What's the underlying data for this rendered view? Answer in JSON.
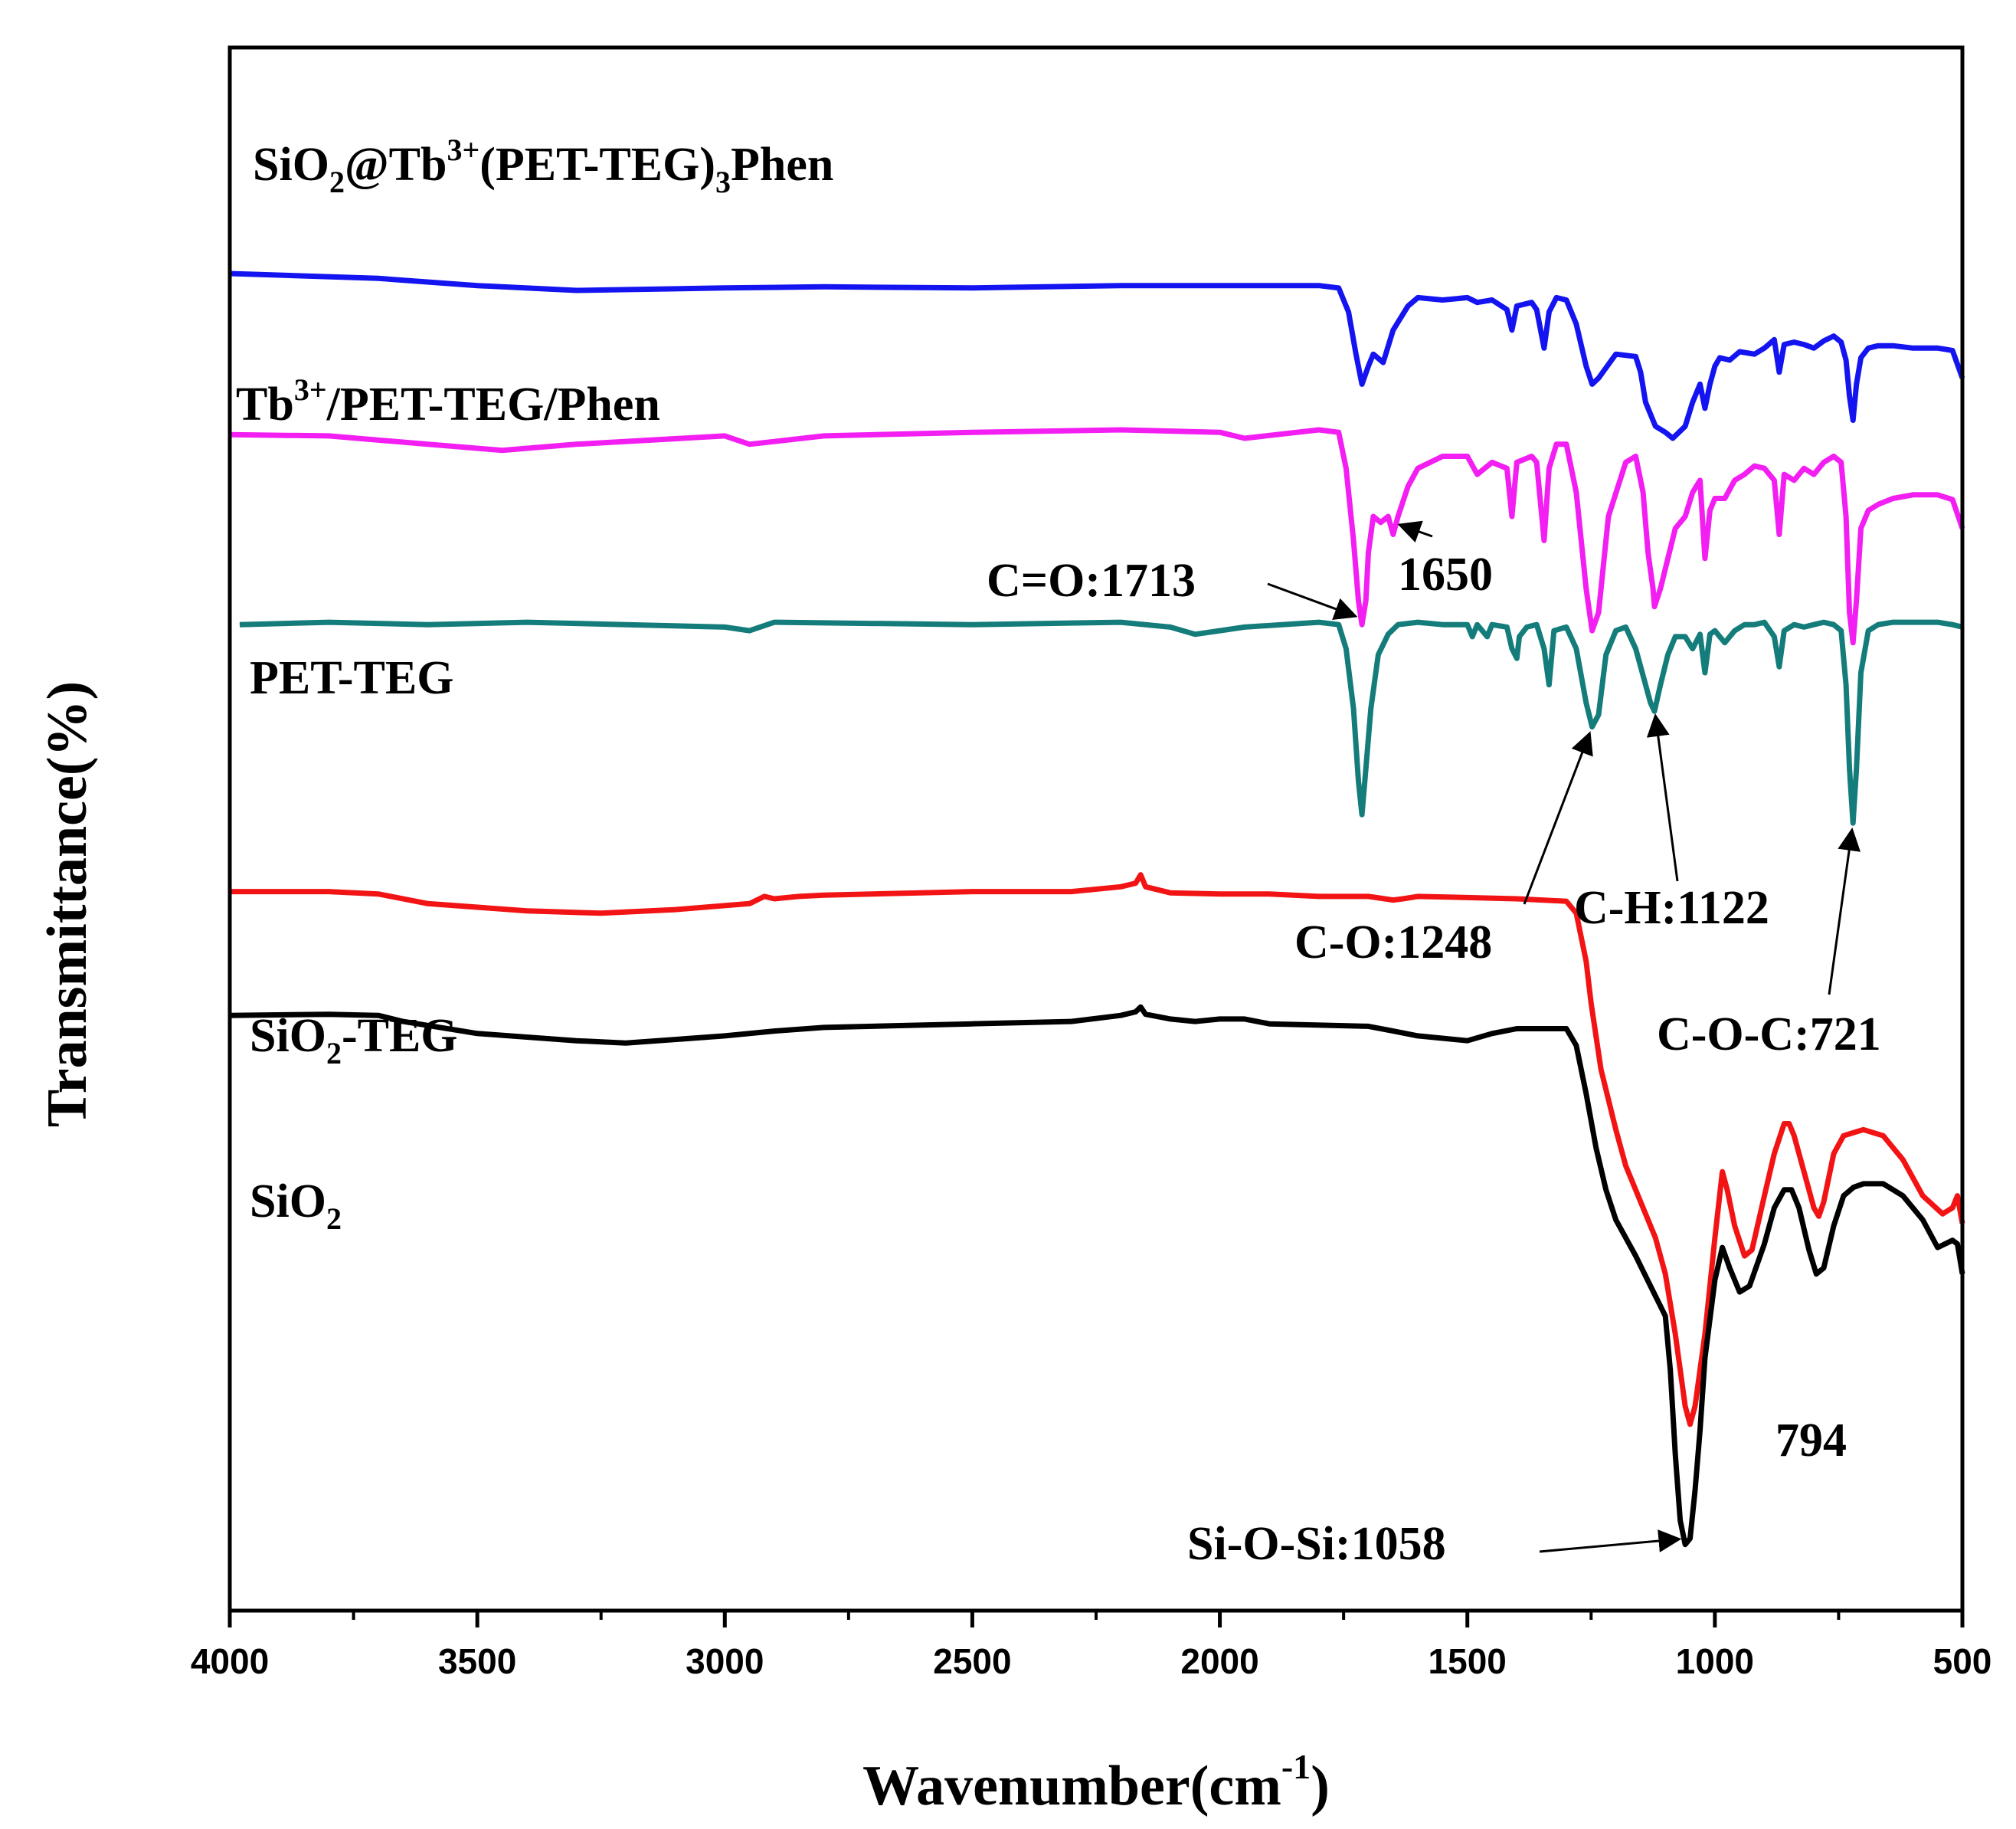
{
  "chart_data": {
    "type": "line",
    "title": "",
    "xlabel": "Wavenumber(cm",
    "xlabel_sup": "-1",
    "xlabel_end": ")",
    "ylabel": "Transmittance(%)",
    "xlim": [
      4000,
      500
    ],
    "x_reversed": true,
    "y_ticks_shown": false,
    "x_ticks": [
      "4000",
      "3500",
      "3000",
      "2500",
      "2000",
      "1500",
      "1000",
      "500"
    ],
    "x_tick_values": [
      4000,
      3500,
      3000,
      2500,
      2000,
      1500,
      1000,
      500
    ],
    "ylim": [
      -0.5,
      12.5
    ],
    "series": [
      {
        "name": "SiO2@Tb3+(PET-TEG)3Phen",
        "label_parts": [
          "SiO",
          "2",
          "@Tb",
          "3+",
          "(PET-TEG)",
          "3",
          "Phen"
        ],
        "color": "#1414f0",
        "x": [
          4000,
          3700,
          3500,
          3300,
          3000,
          2800,
          2500,
          2200,
          2000,
          1800,
          1760,
          1740,
          1725,
          1713,
          1700,
          1690,
          1670,
          1650,
          1620,
          1600,
          1550,
          1500,
          1480,
          1450,
          1420,
          1410,
          1400,
          1370,
          1360,
          1345,
          1335,
          1320,
          1300,
          1280,
          1260,
          1248,
          1235,
          1200,
          1160,
          1150,
          1140,
          1130,
          1120,
          1100,
          1085,
          1060,
          1045,
          1030,
          1020,
          1010,
          1000,
          990,
          970,
          950,
          920,
          900,
          880,
          870,
          860,
          840,
          820,
          800,
          780,
          760,
          745,
          735,
          728,
          721,
          714,
          705,
          690,
          670,
          640,
          600,
          550,
          520,
          500
        ],
        "y": [
          10.62,
          10.58,
          10.52,
          10.48,
          10.5,
          10.51,
          10.5,
          10.52,
          10.52,
          10.52,
          10.5,
          10.3,
          9.95,
          9.7,
          9.85,
          9.95,
          9.88,
          10.15,
          10.35,
          10.42,
          10.4,
          10.42,
          10.38,
          10.4,
          10.32,
          10.15,
          10.35,
          10.38,
          10.32,
          10.0,
          10.3,
          10.42,
          10.4,
          10.2,
          9.85,
          9.7,
          9.75,
          9.95,
          9.93,
          9.8,
          9.55,
          9.45,
          9.35,
          9.3,
          9.25,
          9.35,
          9.55,
          9.7,
          9.5,
          9.7,
          9.85,
          9.92,
          9.9,
          9.97,
          9.95,
          10.0,
          10.07,
          9.8,
          10.03,
          10.05,
          10.03,
          10.0,
          10.06,
          10.1,
          10.05,
          9.9,
          9.6,
          9.4,
          9.7,
          9.92,
          10.0,
          10.02,
          10.02,
          10.0,
          10.0,
          9.98,
          9.75
        ]
      },
      {
        "name": "Tb3+/PET-TEG/Phen",
        "label_parts": [
          "Tb",
          "3+",
          "/PET-TEG/Phen"
        ],
        "color": "#f21ef2",
        "x": [
          4000,
          3800,
          3600,
          3450,
          3300,
          3000,
          2950,
          2800,
          2500,
          2200,
          2000,
          1950,
          1800,
          1760,
          1745,
          1730,
          1720,
          1713,
          1705,
          1700,
          1690,
          1675,
          1660,
          1650,
          1640,
          1620,
          1600,
          1550,
          1500,
          1480,
          1450,
          1420,
          1410,
          1400,
          1370,
          1360,
          1345,
          1335,
          1320,
          1300,
          1280,
          1260,
          1248,
          1235,
          1215,
          1180,
          1160,
          1145,
          1135,
          1125,
          1122,
          1110,
          1095,
          1080,
          1060,
          1045,
          1030,
          1020,
          1010,
          1000,
          980,
          960,
          940,
          920,
          900,
          880,
          870,
          860,
          840,
          820,
          800,
          780,
          760,
          745,
          735,
          728,
          721,
          714,
          705,
          690,
          670,
          640,
          600,
          550,
          520,
          500
        ],
        "y": [
          9.28,
          9.27,
          9.2,
          9.15,
          9.2,
          9.27,
          9.2,
          9.27,
          9.3,
          9.32,
          9.3,
          9.25,
          9.32,
          9.3,
          9.0,
          8.4,
          7.9,
          7.7,
          7.9,
          8.3,
          8.6,
          8.55,
          8.6,
          8.45,
          8.6,
          8.85,
          9.0,
          9.1,
          9.1,
          8.95,
          9.05,
          9.0,
          8.6,
          9.05,
          9.1,
          9.05,
          8.4,
          9.0,
          9.2,
          9.2,
          8.8,
          8.0,
          7.65,
          7.8,
          8.6,
          9.05,
          9.1,
          8.8,
          8.3,
          8.0,
          7.85,
          8.0,
          8.25,
          8.5,
          8.6,
          8.8,
          8.9,
          8.25,
          8.65,
          8.75,
          8.75,
          8.9,
          8.95,
          9.02,
          9.0,
          8.9,
          8.45,
          8.95,
          8.9,
          9.0,
          8.95,
          9.05,
          9.1,
          9.05,
          8.6,
          7.8,
          7.55,
          7.9,
          8.5,
          8.65,
          8.7,
          8.75,
          8.78,
          8.78,
          8.74,
          8.5
        ]
      },
      {
        "name": "PET-TEG",
        "label_parts": [
          "PET-TEG"
        ],
        "color": "#147c7a",
        "x": [
          3980,
          3800,
          3600,
          3400,
          3200,
          3000,
          2950,
          2900,
          2500,
          2200,
          2100,
          2050,
          2000,
          1950,
          1800,
          1760,
          1745,
          1730,
          1720,
          1713,
          1705,
          1695,
          1680,
          1660,
          1640,
          1600,
          1550,
          1500,
          1490,
          1480,
          1460,
          1450,
          1420,
          1410,
          1400,
          1395,
          1380,
          1360,
          1345,
          1335,
          1325,
          1300,
          1280,
          1260,
          1248,
          1235,
          1220,
          1200,
          1180,
          1160,
          1140,
          1130,
          1122,
          1110,
          1095,
          1080,
          1060,
          1045,
          1030,
          1020,
          1010,
          1000,
          980,
          960,
          940,
          920,
          900,
          880,
          870,
          860,
          840,
          820,
          800,
          780,
          760,
          745,
          735,
          728,
          721,
          714,
          705,
          690,
          670,
          640,
          600,
          550,
          520,
          500
        ],
        "y": [
          7.7,
          7.72,
          7.7,
          7.72,
          7.7,
          7.68,
          7.65,
          7.72,
          7.7,
          7.72,
          7.68,
          7.62,
          7.65,
          7.68,
          7.72,
          7.7,
          7.5,
          7.0,
          6.4,
          6.12,
          6.5,
          7.0,
          7.45,
          7.62,
          7.7,
          7.72,
          7.7,
          7.7,
          7.6,
          7.7,
          7.6,
          7.7,
          7.68,
          7.5,
          7.42,
          7.6,
          7.68,
          7.7,
          7.5,
          7.2,
          7.65,
          7.68,
          7.5,
          7.05,
          6.85,
          6.95,
          7.45,
          7.65,
          7.68,
          7.5,
          7.2,
          7.05,
          6.98,
          7.2,
          7.45,
          7.6,
          7.6,
          7.5,
          7.62,
          7.3,
          7.62,
          7.65,
          7.55,
          7.65,
          7.7,
          7.7,
          7.72,
          7.6,
          7.35,
          7.65,
          7.7,
          7.68,
          7.7,
          7.72,
          7.7,
          7.65,
          7.2,
          6.5,
          6.05,
          6.5,
          7.3,
          7.65,
          7.7,
          7.72,
          7.72,
          7.72,
          7.7,
          7.68
        ]
      },
      {
        "name": "SiO2-TEG",
        "label_parts": [
          "SiO",
          "2",
          "-TEG"
        ],
        "color": "#f21414",
        "x": [
          4000,
          3800,
          3700,
          3600,
          3400,
          3250,
          3100,
          2950,
          2920,
          2900,
          2850,
          2800,
          2500,
          2300,
          2200,
          2170,
          2160,
          2150,
          2100,
          2000,
          1900,
          1800,
          1700,
          1650,
          1630,
          1600,
          1500,
          1400,
          1300,
          1280,
          1260,
          1250,
          1230,
          1200,
          1180,
          1150,
          1120,
          1100,
          1080,
          1060,
          1050,
          1040,
          1020,
          1000,
          985,
          975,
          960,
          940,
          925,
          900,
          880,
          860,
          850,
          840,
          820,
          800,
          790,
          780,
          760,
          740,
          700,
          660,
          620,
          580,
          540,
          520,
          510,
          500
        ],
        "y": [
          5.48,
          5.48,
          5.46,
          5.38,
          5.32,
          5.3,
          5.33,
          5.38,
          5.44,
          5.42,
          5.44,
          5.45,
          5.48,
          5.48,
          5.52,
          5.55,
          5.62,
          5.52,
          5.47,
          5.46,
          5.46,
          5.44,
          5.44,
          5.41,
          5.42,
          5.44,
          5.43,
          5.42,
          5.4,
          5.3,
          4.9,
          4.55,
          4.0,
          3.5,
          3.2,
          2.9,
          2.6,
          2.3,
          1.8,
          1.2,
          1.05,
          1.2,
          1.8,
          2.6,
          3.15,
          3.0,
          2.7,
          2.45,
          2.5,
          2.95,
          3.3,
          3.55,
          3.55,
          3.45,
          3.15,
          2.85,
          2.78,
          2.9,
          3.3,
          3.45,
          3.5,
          3.45,
          3.25,
          2.95,
          2.8,
          2.85,
          2.95,
          2.72
        ]
      },
      {
        "name": "SiO2",
        "label_parts": [
          "SiO",
          "2"
        ],
        "color": "#000000",
        "x": [
          4000,
          3800,
          3700,
          3650,
          3500,
          3300,
          3200,
          3000,
          2900,
          2800,
          2500,
          2300,
          2200,
          2170,
          2160,
          2150,
          2100,
          2050,
          2000,
          1950,
          1900,
          1700,
          1650,
          1600,
          1500,
          1450,
          1400,
          1300,
          1280,
          1260,
          1240,
          1220,
          1200,
          1160,
          1130,
          1100,
          1090,
          1080,
          1070,
          1060,
          1050,
          1040,
          1030,
          1020,
          1000,
          985,
          970,
          950,
          930,
          900,
          880,
          860,
          845,
          830,
          810,
          795,
          780,
          760,
          740,
          720,
          700,
          660,
          620,
          580,
          550,
          520,
          510,
          500
        ],
        "y": [
          4.45,
          4.46,
          4.45,
          4.4,
          4.3,
          4.24,
          4.22,
          4.28,
          4.32,
          4.35,
          4.38,
          4.4,
          4.45,
          4.48,
          4.52,
          4.46,
          4.42,
          4.4,
          4.42,
          4.42,
          4.38,
          4.36,
          4.32,
          4.28,
          4.24,
          4.3,
          4.34,
          4.34,
          4.2,
          3.8,
          3.35,
          3.0,
          2.75,
          2.45,
          2.2,
          1.95,
          1.5,
          0.8,
          0.25,
          0.05,
          0.1,
          0.5,
          1.0,
          1.6,
          2.25,
          2.52,
          2.35,
          2.15,
          2.2,
          2.55,
          2.85,
          3.0,
          3.0,
          2.85,
          2.5,
          2.3,
          2.35,
          2.7,
          2.95,
          3.02,
          3.05,
          3.05,
          2.95,
          2.75,
          2.52,
          2.58,
          2.55,
          2.3
        ]
      }
    ],
    "series_labels": [
      {
        "parts": [
          "SiO",
          "2",
          "@Tb",
          "3+",
          "(PET-TEG)",
          "3",
          "Phen"
        ],
        "kinds": [
          "n",
          "sub",
          "n",
          "sup",
          "n",
          "sub",
          "n"
        ]
      },
      {
        "parts": [
          "Tb",
          "3+",
          "/PET-TEG/Phen"
        ],
        "kinds": [
          "n",
          "sup",
          "n"
        ]
      },
      {
        "parts": [
          "PET-TEG"
        ],
        "kinds": [
          "n"
        ]
      },
      {
        "parts": [
          "SiO",
          "2",
          "-TEG"
        ],
        "kinds": [
          "n",
          "sub",
          "n"
        ]
      },
      {
        "parts": [
          "SiO",
          "2"
        ],
        "kinds": [
          "n",
          "sub"
        ]
      }
    ],
    "annotations": [
      {
        "text": "C=O:1713",
        "target_x": 1713,
        "target_y": 7.75
      },
      {
        "text": "1650",
        "target_x": 1650,
        "target_y": 8.55
      },
      {
        "text": "C-O:1248",
        "target_x": 1248,
        "target_y": 6.85
      },
      {
        "text": "C-H:1122",
        "target_x": 1122,
        "target_y": 7.0
      },
      {
        "text": "C-O-C:721",
        "target_x": 721,
        "target_y": 6.05
      },
      {
        "text": "794",
        "target_x": null,
        "target_y": null
      },
      {
        "text": "Si-O-Si:1058",
        "target_x": 1058,
        "target_y": 0.1
      }
    ]
  }
}
